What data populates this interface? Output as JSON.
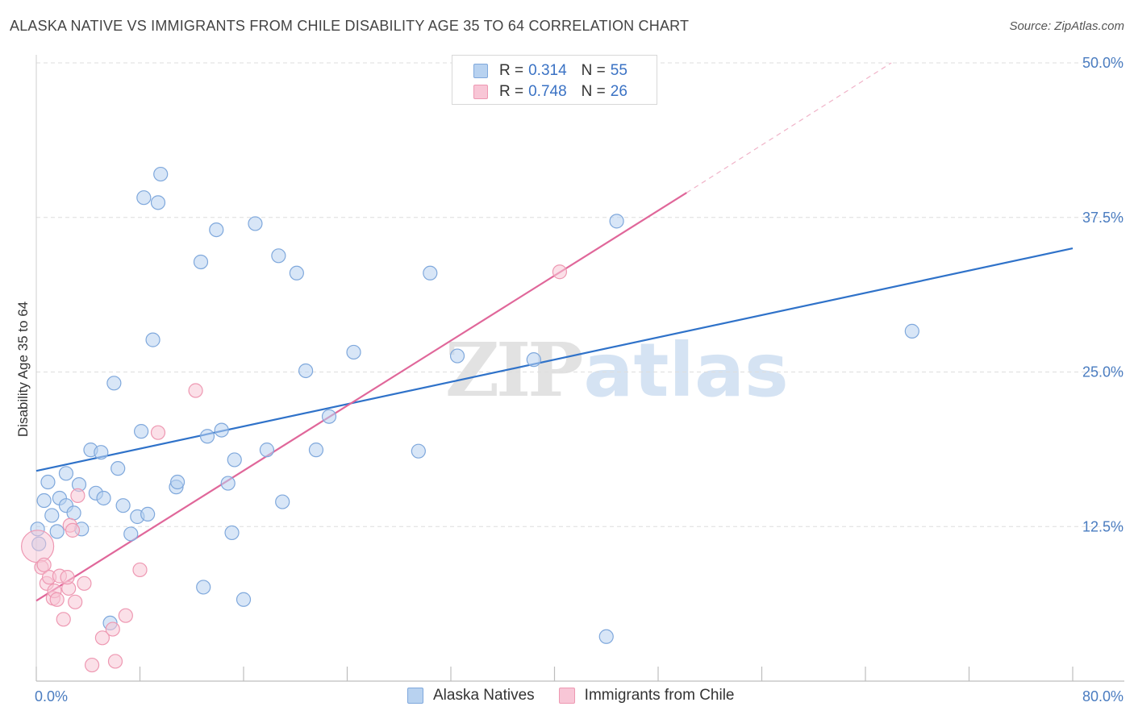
{
  "header": {
    "title": "ALASKA NATIVE VS IMMIGRANTS FROM CHILE DISABILITY AGE 35 TO 64 CORRELATION CHART",
    "source": "Source: ZipAtlas.com"
  },
  "watermark": {
    "zip": "ZIP",
    "atlas": "atlas"
  },
  "legend_top": {
    "rows": [
      {
        "r_label": "R =",
        "r_value": "0.314",
        "n_label": "N =",
        "n_value": "55"
      },
      {
        "r_label": "R =",
        "r_value": "0.748",
        "n_label": "N =",
        "n_value": "26"
      }
    ]
  },
  "legend_bottom": {
    "items": [
      {
        "label": "Alaska Natives"
      },
      {
        "label": "Immigrants from Chile"
      }
    ]
  },
  "colors": {
    "blue_fill": "#b8d2f0",
    "blue_stroke": "#7fa8dc",
    "blue_line": "#2f72c9",
    "pink_fill": "#f8c6d6",
    "pink_stroke": "#ee98b2",
    "pink_line": "#e0679a",
    "axis_label": "#4a7cc0",
    "grid": "#dedede"
  },
  "chart_data": {
    "type": "scatter",
    "title": "ALASKA NATIVE VS IMMIGRANTS FROM CHILE DISABILITY AGE 35 TO 64 CORRELATION CHART",
    "xlabel": "",
    "ylabel": "Disability Age 35 to 64",
    "xlim": [
      0,
      80
    ],
    "ylim": [
      0,
      50
    ],
    "x_tick_labels": [
      {
        "value": 0,
        "label": "0.0%"
      },
      {
        "value": 80,
        "label": "80.0%"
      }
    ],
    "y_tick_labels": [
      {
        "value": 12.5,
        "label": "12.5%"
      },
      {
        "value": 25,
        "label": "25.0%"
      },
      {
        "value": 37.5,
        "label": "37.5%"
      },
      {
        "value": 50,
        "label": "50.0%"
      }
    ],
    "series": [
      {
        "name": "Alaska Natives",
        "color": "blue",
        "r": 0.314,
        "n": 55,
        "trendline": {
          "x0": 0,
          "y0": 17.0,
          "x1": 80,
          "y1": 35.0
        },
        "points": [
          [
            0.1,
            12.3
          ],
          [
            0.6,
            14.6
          ],
          [
            0.9,
            16.1
          ],
          [
            1.2,
            13.4
          ],
          [
            1.6,
            12.1
          ],
          [
            1.8,
            14.8
          ],
          [
            2.3,
            16.8
          ],
          [
            2.3,
            14.2
          ],
          [
            2.9,
            13.6
          ],
          [
            3.3,
            15.9
          ],
          [
            3.5,
            12.3
          ],
          [
            4.2,
            18.7
          ],
          [
            4.6,
            15.2
          ],
          [
            5.0,
            18.5
          ],
          [
            5.2,
            14.8
          ],
          [
            6.0,
            24.1
          ],
          [
            6.3,
            17.2
          ],
          [
            6.7,
            14.2
          ],
          [
            7.3,
            11.9
          ],
          [
            7.8,
            13.3
          ],
          [
            8.1,
            20.2
          ],
          [
            8.3,
            39.1
          ],
          [
            8.6,
            13.5
          ],
          [
            9.0,
            27.6
          ],
          [
            9.4,
            38.7
          ],
          [
            9.6,
            41.0
          ],
          [
            10.8,
            15.7
          ],
          [
            10.9,
            16.1
          ],
          [
            12.7,
            33.9
          ],
          [
            12.9,
            7.6
          ],
          [
            13.2,
            19.8
          ],
          [
            13.9,
            36.5
          ],
          [
            14.3,
            20.3
          ],
          [
            14.8,
            16.0
          ],
          [
            15.1,
            12.0
          ],
          [
            15.3,
            17.9
          ],
          [
            16.0,
            6.6
          ],
          [
            16.9,
            37.0
          ],
          [
            17.8,
            18.7
          ],
          [
            18.7,
            34.4
          ],
          [
            19.0,
            14.5
          ],
          [
            20.1,
            33.0
          ],
          [
            20.8,
            25.1
          ],
          [
            21.6,
            18.7
          ],
          [
            22.6,
            21.4
          ],
          [
            24.5,
            26.6
          ],
          [
            29.5,
            18.6
          ],
          [
            30.4,
            33.0
          ],
          [
            32.5,
            26.3
          ],
          [
            38.4,
            26.0
          ],
          [
            44.8,
            37.2
          ],
          [
            44.0,
            3.6
          ],
          [
            67.6,
            28.3
          ],
          [
            5.7,
            4.7
          ],
          [
            0.2,
            11.1
          ]
        ]
      },
      {
        "name": "Immigrants from Chile",
        "color": "pink",
        "r": 0.748,
        "n": 26,
        "trendline": {
          "x0": 0,
          "y0": 6.5,
          "x1": 50.2,
          "y1": 39.5,
          "dashed_to_x": 66,
          "dashed_to_y": 50
        },
        "points": [
          [
            0.1,
            10.9
          ],
          [
            0.4,
            9.2
          ],
          [
            0.6,
            9.4
          ],
          [
            0.8,
            7.9
          ],
          [
            1.0,
            8.4
          ],
          [
            1.3,
            6.7
          ],
          [
            1.4,
            7.3
          ],
          [
            1.6,
            6.6
          ],
          [
            1.8,
            8.5
          ],
          [
            2.1,
            5.0
          ],
          [
            2.5,
            7.5
          ],
          [
            2.4,
            8.4
          ],
          [
            2.6,
            12.6
          ],
          [
            2.8,
            12.2
          ],
          [
            3.0,
            6.4
          ],
          [
            3.2,
            15.0
          ],
          [
            3.7,
            7.9
          ],
          [
            4.3,
            1.3
          ],
          [
            5.1,
            3.5
          ],
          [
            5.9,
            4.2
          ],
          [
            6.1,
            1.6
          ],
          [
            6.9,
            5.3
          ],
          [
            8.0,
            9.0
          ],
          [
            9.4,
            20.1
          ],
          [
            12.3,
            23.5
          ],
          [
            40.4,
            33.1
          ]
        ]
      }
    ]
  }
}
